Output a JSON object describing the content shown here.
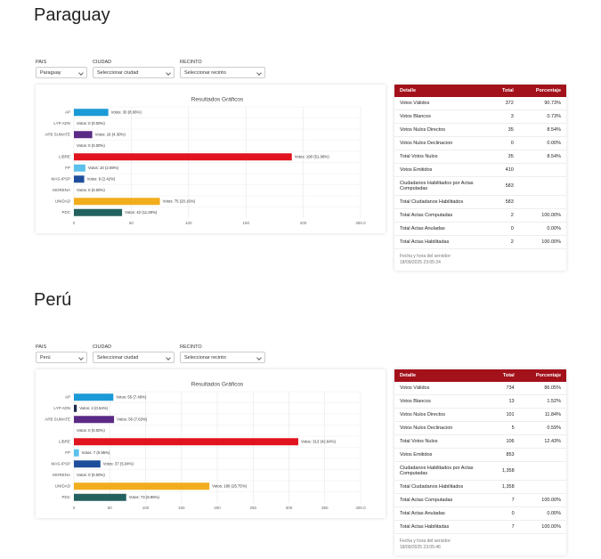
{
  "sections": [
    {
      "title": "Paraguay",
      "filters": [
        {
          "label": "PAIS",
          "value": "Paraguay"
        },
        {
          "label": "CIUDAD",
          "value": "Seleccionar ciudad"
        },
        {
          "label": "RECINTO",
          "value": "Seleccionar recinto"
        }
      ],
      "chart": {
        "type": "bar",
        "orientation": "horizontal",
        "title": "Resultados Gráficos",
        "categories": [
          "AP",
          "LYP ADN",
          "APB SUMATE",
          null,
          "LIBRE",
          "FP",
          "MAS-IPSP",
          "MORENA",
          "UNIDAD",
          "PDC"
        ],
        "values": [
          30,
          0,
          16,
          0,
          190,
          10,
          9,
          0,
          75,
          42
        ],
        "value_labels": [
          "Votos: 30 (8.06%)",
          "Votos: 0 (0.00%)",
          "Votos: 16 (4.30%)",
          "Votos: 0 (0.00%)",
          "Votos: 190 (51.08%)",
          "Votos: 10 (2.69%)",
          "Votos: 9 (2.42%)",
          "Votos: 0 (0.00%)",
          "Votos: 75 (20.16%)",
          "Votos: 42 (11.29%)"
        ],
        "colors": [
          "#1a9ad6",
          "#1b2a4a",
          "#5b2a86",
          "#888888",
          "#e0131e",
          "#5bc0eb",
          "#1f4e9c",
          "#555555",
          "#f2ad1d",
          "#23615f"
        ],
        "xlim": [
          0,
          250
        ],
        "xticks": [
          0,
          50,
          100,
          150,
          200,
          {
            "value": 250,
            "label": "250.0"
          }
        ],
        "grid": true
      },
      "table": {
        "header": [
          "Detalle",
          "Total",
          "Porcentaje"
        ],
        "rows": [
          [
            "Votos Válidos",
            "372",
            "90.73%"
          ],
          [
            "Votos Blancos",
            "3",
            "0.73%"
          ],
          [
            "Votos Nulos Directos",
            "35",
            "8.54%"
          ],
          [
            "Votos Nulos Declinacion",
            "0",
            "0.00%"
          ],
          [
            "Total Votos Nulos",
            "35",
            "8.54%"
          ],
          [
            "Votos Emitidos",
            "410"
          ],
          [
            "Ciudadanos Habilitados por Actas Computadas",
            "583"
          ],
          [
            "Total Ciudadanos Habilitados",
            "583"
          ],
          [
            "Total Actas Computadas",
            "2",
            "100.00%"
          ],
          [
            "Total Actas Anuladas",
            "0",
            "0.00%"
          ],
          [
            "Total Actas Habilitadas",
            "2",
            "100.00%"
          ]
        ],
        "footer": [
          "Fecha y hora del servidor:",
          "18/09/2025 23:05:24"
        ]
      }
    },
    {
      "title": "Perú",
      "filters": [
        {
          "label": "PAIS",
          "value": "Perú"
        },
        {
          "label": "CIUDAD",
          "value": "Seleccionar ciudad"
        },
        {
          "label": "RECINTO",
          "value": "Seleccionar recinto"
        }
      ],
      "chart": {
        "type": "bar",
        "orientation": "horizontal",
        "title": "Resultados Gráficos",
        "categories": [
          "AP",
          "LYP ADN",
          "APB SUMATE",
          null,
          "LIBRE",
          "FP",
          "MAS-IPSP",
          "MORENA",
          "UNIDAD",
          "PDC"
        ],
        "values": [
          55,
          4,
          56,
          0,
          313,
          7,
          37,
          0,
          189,
          73
        ],
        "value_labels": [
          "Votos: 55 (7.49%)",
          "Votos: 4 (0.54%)",
          "Votos: 56 (7.63%)",
          "Votos: 0 (0.00%)",
          "Votos: 313 (42.64%)",
          "Votos: 7 (0.95%)",
          "Votos: 37 (5.04%)",
          "Votos: 0 (0.00%)",
          "Votos: 189 (25.75%)",
          "Votos: 73 (9.95%)"
        ],
        "colors": [
          "#1a9ad6",
          "#1b2a4a",
          "#5b2a86",
          "#888888",
          "#e0131e",
          "#5bc0eb",
          "#1f4e9c",
          "#555555",
          "#f2ad1d",
          "#23615f"
        ],
        "xlim": [
          0,
          400
        ],
        "xticks": [
          0,
          50,
          100,
          150,
          200,
          250,
          300,
          350,
          {
            "value": 400,
            "label": "400.0"
          }
        ],
        "grid": true
      },
      "table": {
        "header": [
          "Detalle",
          "Total",
          "Porcentaje"
        ],
        "rows": [
          [
            "Votos Válidos",
            "734",
            "86.05%"
          ],
          [
            "Votos Blancos",
            "13",
            "1.52%"
          ],
          [
            "Votos Nulos Directos",
            "101",
            "11.84%"
          ],
          [
            "Votos Nulos Declinacion",
            "5",
            "0.59%"
          ],
          [
            "Total Votos Nulos",
            "106",
            "12.43%"
          ],
          [
            "Votos Emitidos",
            "853"
          ],
          [
            "Ciudadanos Habilitados por Actas Computadas",
            "1,358"
          ],
          [
            "Total Ciudadanos Habilitados",
            "1,358"
          ],
          [
            "Total Actas Computadas",
            "7",
            "100.00%"
          ],
          [
            "Total Actas Anuladas",
            "0",
            "0.00%"
          ],
          [
            "Total Actas Habilitadas",
            "7",
            "100.00%"
          ]
        ],
        "footer": [
          "Fecha y hora del servidor:",
          "18/09/2025 23:05:46"
        ]
      }
    }
  ]
}
